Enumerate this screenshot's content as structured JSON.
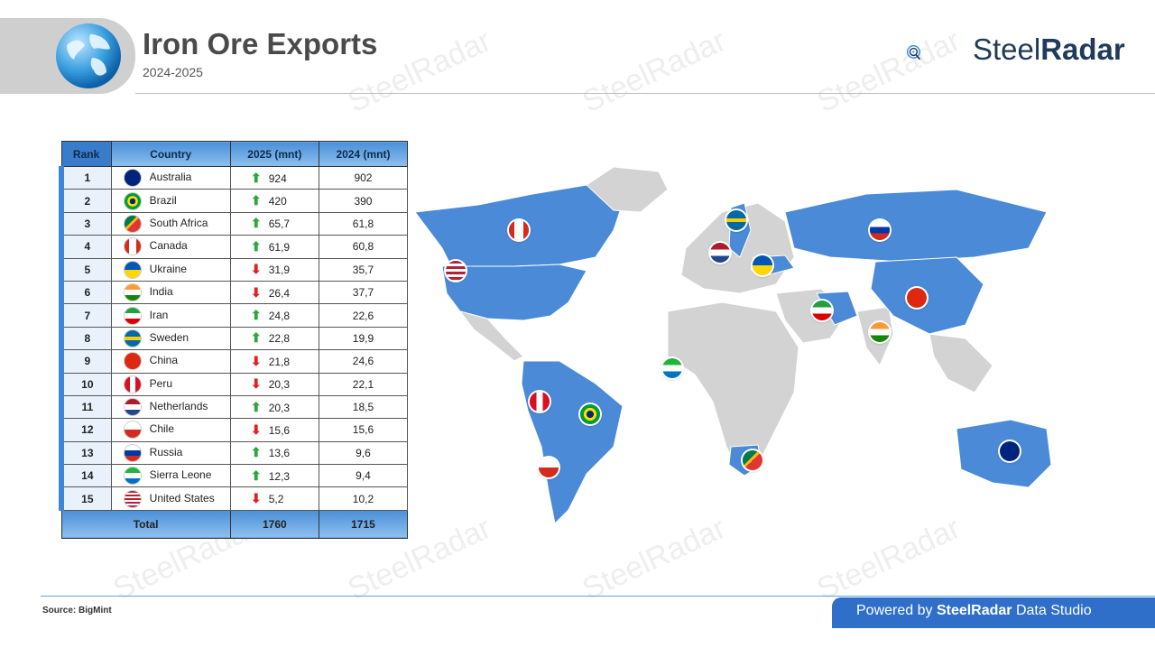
{
  "header": {
    "title": "Iron Ore Exports",
    "subtitle": "2024-2025",
    "brand_light": "Steel",
    "brand_bold": "Radar",
    "watermark": "SteelRadar"
  },
  "table": {
    "headers": [
      "Rank",
      "Country",
      "2025 (mnt)",
      "2024 (mnt)"
    ],
    "rows": [
      {
        "rank": "1",
        "country": "Australia",
        "v2025": "924",
        "v2024": "902",
        "trend": "up"
      },
      {
        "rank": "2",
        "country": "Brazil",
        "v2025": "420",
        "v2024": "390",
        "trend": "up"
      },
      {
        "rank": "3",
        "country": "South Africa",
        "v2025": "65,7",
        "v2024": "61,8",
        "trend": "up"
      },
      {
        "rank": "4",
        "country": "Canada",
        "v2025": "61,9",
        "v2024": "60,8",
        "trend": "up"
      },
      {
        "rank": "5",
        "country": "Ukraine",
        "v2025": "31,9",
        "v2024": "35,7",
        "trend": "down"
      },
      {
        "rank": "6",
        "country": "India",
        "v2025": "26,4",
        "v2024": "37,7",
        "trend": "down"
      },
      {
        "rank": "7",
        "country": "Iran",
        "v2025": "24,8",
        "v2024": "22,6",
        "trend": "up"
      },
      {
        "rank": "8",
        "country": "Sweden",
        "v2025": "22,8",
        "v2024": "19,9",
        "trend": "up"
      },
      {
        "rank": "9",
        "country": "China",
        "v2025": "21,8",
        "v2024": "24,6",
        "trend": "down"
      },
      {
        "rank": "10",
        "country": "Peru",
        "v2025": "20,3",
        "v2024": "22,1",
        "trend": "down"
      },
      {
        "rank": "11",
        "country": "Netherlands",
        "v2025": "20,3",
        "v2024": "18,5",
        "trend": "up"
      },
      {
        "rank": "12",
        "country": "Chile",
        "v2025": "15,6",
        "v2024": "15,6",
        "trend": "down"
      },
      {
        "rank": "13",
        "country": "Russia",
        "v2025": "13,6",
        "v2024": "9,6",
        "trend": "up"
      },
      {
        "rank": "14",
        "country": "Sierra Leone",
        "v2025": "12,3",
        "v2024": "9,4",
        "trend": "up"
      },
      {
        "rank": "15",
        "country": "United States",
        "v2025": "5,2",
        "v2024": "10,2",
        "trend": "down"
      }
    ],
    "total_label": "Total",
    "total_2025": "1760",
    "total_2024": "1715"
  },
  "chart_data": {
    "type": "table",
    "title": "Iron Ore Exports",
    "subtitle": "2024-2025",
    "columns": [
      "Rank",
      "Country",
      "2025 (mnt)",
      "2024 (mnt)"
    ],
    "categories": [
      "Australia",
      "Brazil",
      "South Africa",
      "Canada",
      "Ukraine",
      "India",
      "Iran",
      "Sweden",
      "China",
      "Peru",
      "Netherlands",
      "Chile",
      "Russia",
      "Sierra Leone",
      "United States"
    ],
    "series": [
      {
        "name": "2025 (mnt)",
        "values": [
          924,
          420,
          65.7,
          61.9,
          31.9,
          26.4,
          24.8,
          22.8,
          21.8,
          20.3,
          20.3,
          15.6,
          13.6,
          12.3,
          5.2
        ]
      },
      {
        "name": "2024 (mnt)",
        "values": [
          902,
          390,
          61.8,
          60.8,
          35.7,
          37.7,
          22.6,
          19.9,
          24.6,
          22.1,
          18.5,
          15.6,
          9.6,
          9.4,
          10.2
        ]
      }
    ],
    "totals": {
      "2025 (mnt)": 1760,
      "2024 (mnt)": 1715
    }
  },
  "colors": {
    "accent": "#2f6fc9",
    "highlight_country": "#4a8ad6",
    "other_country": "#d3d3d3",
    "up": "#2aa63a",
    "down": "#e02020"
  },
  "footer": {
    "source": "Source: BigMint",
    "powered_prefix": "Powered by ",
    "powered_brand": "SteelRadar",
    "powered_suffix": " Data Studio"
  }
}
